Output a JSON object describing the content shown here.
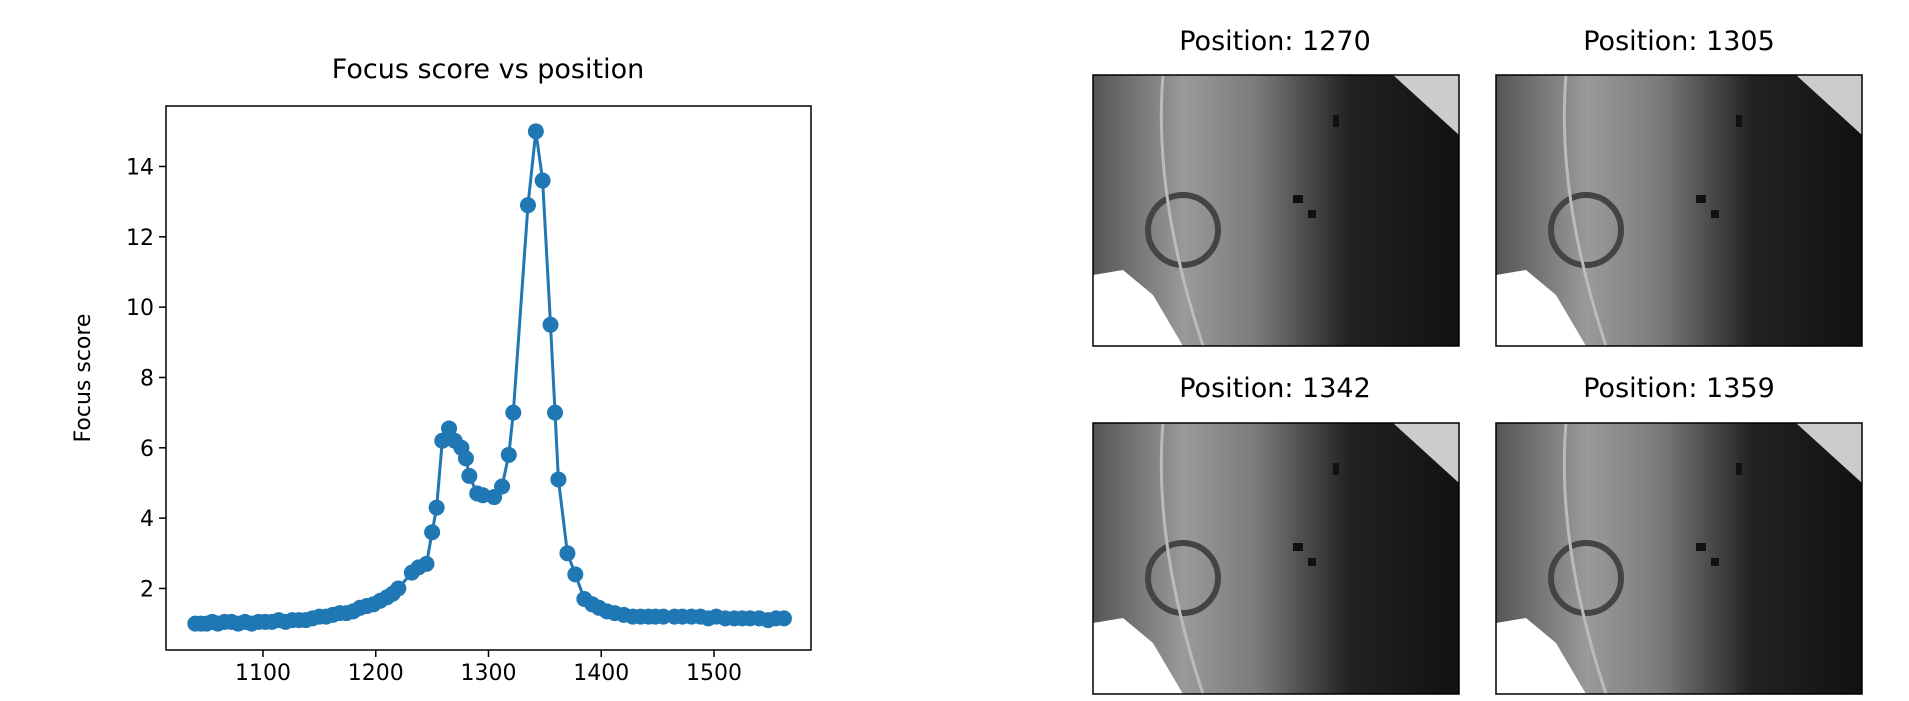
{
  "chart_data": {
    "type": "line",
    "title": "Focus score vs position",
    "ylabel": "Focus score",
    "color": "#1f77b4",
    "markers": true,
    "x": [
      1040,
      1045,
      1050,
      1055,
      1060,
      1066,
      1072,
      1078,
      1084,
      1090,
      1096,
      1102,
      1108,
      1114,
      1120,
      1126,
      1132,
      1138,
      1144,
      1150,
      1156,
      1162,
      1168,
      1174,
      1180,
      1186,
      1192,
      1198,
      1204,
      1210,
      1215,
      1220,
      1232,
      1238,
      1245,
      1250,
      1254,
      1259,
      1265,
      1270,
      1276,
      1280,
      1283,
      1290,
      1295,
      1305,
      1312,
      1318,
      1322,
      1335,
      1342,
      1348,
      1355,
      1359,
      1362,
      1370,
      1377,
      1385,
      1392,
      1398,
      1405,
      1412,
      1420,
      1428,
      1435,
      1442,
      1448,
      1455,
      1465,
      1472,
      1480,
      1488,
      1495,
      1502,
      1510,
      1518,
      1525,
      1532,
      1540,
      1548,
      1555,
      1562
    ],
    "series": [
      {
        "name": "Focus score",
        "color": "#1f77b4",
        "values": [
          1.0,
          1.0,
          1.0,
          1.05,
          1.0,
          1.05,
          1.05,
          1.0,
          1.05,
          1.0,
          1.05,
          1.05,
          1.05,
          1.1,
          1.05,
          1.1,
          1.1,
          1.1,
          1.15,
          1.2,
          1.2,
          1.25,
          1.3,
          1.3,
          1.35,
          1.45,
          1.5,
          1.55,
          1.65,
          1.75,
          1.85,
          2.0,
          2.45,
          2.6,
          2.7,
          3.6,
          4.3,
          6.2,
          6.55,
          6.2,
          6.0,
          5.7,
          5.2,
          4.7,
          4.65,
          4.6,
          4.9,
          5.8,
          7.0,
          12.9,
          15.0,
          13.6,
          9.5,
          7.0,
          5.1,
          3.0,
          2.4,
          1.7,
          1.55,
          1.45,
          1.35,
          1.3,
          1.25,
          1.2,
          1.2,
          1.2,
          1.2,
          1.2,
          1.2,
          1.2,
          1.2,
          1.2,
          1.15,
          1.2,
          1.15,
          1.15,
          1.15,
          1.15,
          1.15,
          1.1,
          1.15,
          1.15
        ]
      }
    ],
    "xlim": [
      1014,
      1586
    ],
    "ylim": [
      0.25,
      15.72
    ],
    "xticks": [
      1100,
      1200,
      1300,
      1400,
      1500
    ],
    "yticks": [
      2,
      4,
      6,
      8,
      10,
      12,
      14
    ]
  },
  "images": [
    {
      "title": "Position: 1270"
    },
    {
      "title": "Position: 1305"
    },
    {
      "title": "Position: 1342"
    },
    {
      "title": "Position: 1359"
    }
  ]
}
